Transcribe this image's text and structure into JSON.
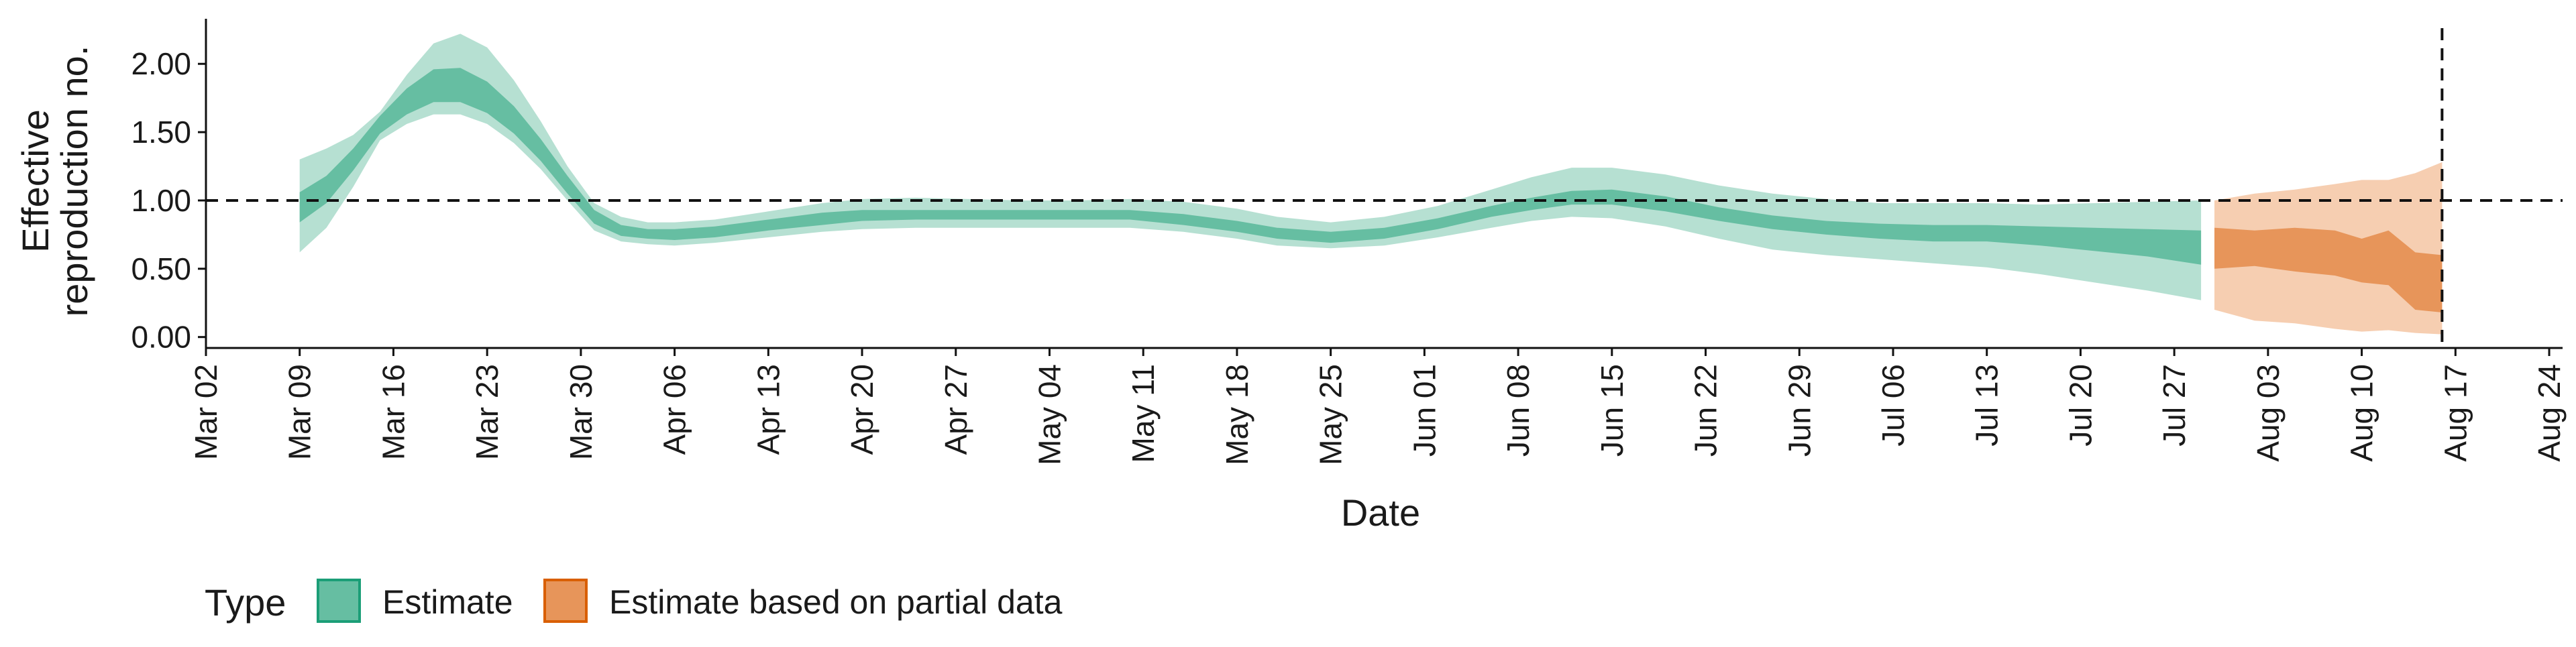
{
  "chart_data": {
    "type": "area",
    "ylabel_lines": [
      "Effective",
      "reproduction no."
    ],
    "xlabel": "Date",
    "ylim": [
      -0.08,
      2.33
    ],
    "xlim_days": [
      -9,
      167
    ],
    "y_ticks": [
      0.0,
      0.5,
      1.0,
      1.5,
      2.0
    ],
    "y_tick_labels": [
      "0.00",
      "0.50",
      "1.00",
      "1.50",
      "2.00"
    ],
    "x_ticks": [
      "2020-03-02",
      "2020-03-09",
      "2020-03-16",
      "2020-03-23",
      "2020-03-30",
      "2020-04-06",
      "2020-04-13",
      "2020-04-20",
      "2020-04-27",
      "2020-05-04",
      "2020-05-11",
      "2020-05-18",
      "2020-05-25",
      "2020-06-01",
      "2020-06-08",
      "2020-06-15",
      "2020-06-22",
      "2020-06-29",
      "2020-07-06",
      "2020-07-13",
      "2020-07-20",
      "2020-07-27",
      "2020-08-03",
      "2020-08-10",
      "2020-08-17",
      "2020-08-24"
    ],
    "x_tick_labels": [
      "Mar 02",
      "Mar 09",
      "Mar 16",
      "Mar 23",
      "Mar 30",
      "Apr 06",
      "Apr 13",
      "Apr 20",
      "Apr 27",
      "May 04",
      "May 11",
      "May 18",
      "May 25",
      "Jun 01",
      "Jun 08",
      "Jun 15",
      "Jun 22",
      "Jun 29",
      "Jul 06",
      "Jul 13",
      "Jul 20",
      "Jul 27",
      "Aug 03",
      "Aug 10",
      "Aug 17",
      "Aug 24"
    ],
    "reference_line_y": 1.0,
    "vertical_line_date": "2020-08-16",
    "legend_title": "Type",
    "colors": {
      "estimate_inner": "#66BEA2",
      "estimate_outer": "#B6E0D2",
      "partial_inner": "#E7955A",
      "partial_outer": "#F6CEB1",
      "estimate_border": "#1B9E77",
      "partial_border": "#D95F02"
    },
    "series": [
      {
        "name": "Estimate",
        "dates": [
          "2020-03-09",
          "2020-03-11",
          "2020-03-13",
          "2020-03-15",
          "2020-03-17",
          "2020-03-19",
          "2020-03-21",
          "2020-03-23",
          "2020-03-25",
          "2020-03-27",
          "2020-03-29",
          "2020-03-31",
          "2020-04-02",
          "2020-04-04",
          "2020-04-06",
          "2020-04-09",
          "2020-04-13",
          "2020-04-17",
          "2020-04-20",
          "2020-04-24",
          "2020-04-28",
          "2020-05-02",
          "2020-05-06",
          "2020-05-10",
          "2020-05-14",
          "2020-05-18",
          "2020-05-21",
          "2020-05-25",
          "2020-05-29",
          "2020-06-02",
          "2020-06-06",
          "2020-06-09",
          "2020-06-12",
          "2020-06-15",
          "2020-06-19",
          "2020-06-23",
          "2020-06-27",
          "2020-07-01",
          "2020-07-05",
          "2020-07-09",
          "2020-07-13",
          "2020-07-17",
          "2020-07-21",
          "2020-07-25",
          "2020-07-29"
        ],
        "upper90": [
          1.3,
          1.38,
          1.48,
          1.65,
          1.92,
          2.15,
          2.22,
          2.12,
          1.88,
          1.58,
          1.25,
          0.98,
          0.88,
          0.84,
          0.84,
          0.86,
          0.92,
          0.98,
          1.01,
          1.02,
          1.01,
          1.0,
          1.0,
          1.01,
          0.99,
          0.94,
          0.88,
          0.84,
          0.88,
          0.96,
          1.08,
          1.17,
          1.24,
          1.24,
          1.19,
          1.11,
          1.05,
          1.01,
          0.98,
          0.98,
          0.98,
          0.97,
          0.98,
          0.99,
          1.0
        ],
        "upper50": [
          1.06,
          1.18,
          1.38,
          1.62,
          1.82,
          1.96,
          1.97,
          1.87,
          1.69,
          1.45,
          1.18,
          0.93,
          0.82,
          0.79,
          0.79,
          0.81,
          0.86,
          0.91,
          0.93,
          0.93,
          0.93,
          0.93,
          0.93,
          0.93,
          0.9,
          0.85,
          0.8,
          0.77,
          0.8,
          0.87,
          0.96,
          1.02,
          1.07,
          1.08,
          1.03,
          0.95,
          0.89,
          0.85,
          0.83,
          0.82,
          0.82,
          0.81,
          0.8,
          0.79,
          0.78
        ],
        "lower50": [
          0.84,
          0.98,
          1.22,
          1.49,
          1.63,
          1.72,
          1.72,
          1.64,
          1.49,
          1.29,
          1.05,
          0.83,
          0.74,
          0.72,
          0.71,
          0.73,
          0.78,
          0.82,
          0.85,
          0.86,
          0.86,
          0.86,
          0.86,
          0.86,
          0.82,
          0.77,
          0.72,
          0.69,
          0.72,
          0.79,
          0.88,
          0.93,
          0.97,
          0.97,
          0.92,
          0.85,
          0.79,
          0.75,
          0.72,
          0.7,
          0.7,
          0.67,
          0.63,
          0.59,
          0.53
        ],
        "lower90": [
          0.62,
          0.8,
          1.1,
          1.44,
          1.56,
          1.63,
          1.63,
          1.56,
          1.42,
          1.23,
          1.0,
          0.78,
          0.7,
          0.68,
          0.67,
          0.69,
          0.73,
          0.77,
          0.79,
          0.8,
          0.8,
          0.8,
          0.8,
          0.8,
          0.77,
          0.72,
          0.67,
          0.65,
          0.67,
          0.73,
          0.8,
          0.85,
          0.88,
          0.87,
          0.81,
          0.72,
          0.64,
          0.6,
          0.57,
          0.54,
          0.51,
          0.46,
          0.4,
          0.34,
          0.27
        ]
      },
      {
        "name": "Estimate based on partial data",
        "dates": [
          "2020-07-30",
          "2020-08-02",
          "2020-08-05",
          "2020-08-08",
          "2020-08-10",
          "2020-08-12",
          "2020-08-14",
          "2020-08-16"
        ],
        "upper90": [
          1.0,
          1.05,
          1.08,
          1.12,
          1.15,
          1.15,
          1.2,
          1.28
        ],
        "upper50": [
          0.8,
          0.78,
          0.8,
          0.78,
          0.72,
          0.78,
          0.62,
          0.6
        ],
        "lower50": [
          0.5,
          0.52,
          0.48,
          0.45,
          0.4,
          0.38,
          0.2,
          0.18
        ],
        "lower90": [
          0.2,
          0.12,
          0.1,
          0.06,
          0.04,
          0.05,
          0.03,
          0.02
        ]
      }
    ]
  }
}
